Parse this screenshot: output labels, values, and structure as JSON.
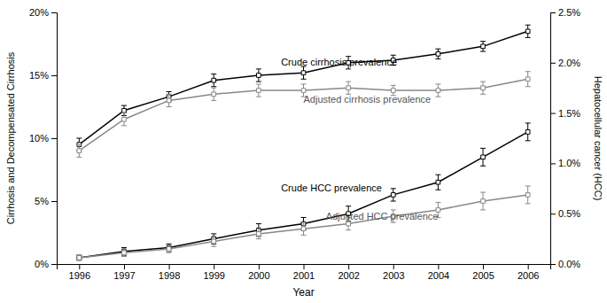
{
  "chart_data": {
    "type": "line",
    "x_label": "Year",
    "y_label": "Cirrhosis and Decompensated Cirrhosis",
    "y2_label": "Hepatocellular cancer (HCC)",
    "x": [
      1996,
      1997,
      1998,
      1999,
      2000,
      2001,
      2002,
      2003,
      2004,
      2005,
      2006
    ],
    "xlim": [
      1995.5,
      2006.5
    ],
    "xticks": [
      1996,
      1997,
      1998,
      1999,
      2000,
      2001,
      2002,
      2003,
      2004,
      2005,
      2006
    ],
    "ylim": [
      0,
      20
    ],
    "yticks": [
      {
        "value": 0,
        "label": "0%"
      },
      {
        "value": 5,
        "label": "5%"
      },
      {
        "value": 10,
        "label": "10%"
      },
      {
        "value": 15,
        "label": "15%"
      },
      {
        "value": 20,
        "label": "20%"
      }
    ],
    "y2lim": [
      0,
      2.5
    ],
    "y2ticks": [
      {
        "value": 0.0,
        "label": "0.0%"
      },
      {
        "value": 0.5,
        "label": "0.5%"
      },
      {
        "value": 1.0,
        "label": "1.0%"
      },
      {
        "value": 1.5,
        "label": "1.5%"
      },
      {
        "value": 2.0,
        "label": "2.0%"
      },
      {
        "value": 2.5,
        "label": "2.5%"
      }
    ],
    "grid": false,
    "series": [
      {
        "color": "#000000",
        "marker": "square",
        "values": [
          9.5,
          12.2,
          13.3,
          14.6,
          15.0,
          15.2,
          16.0,
          16.2,
          16.7,
          17.3,
          18.5
        ],
        "errors": [
          0.5,
          0.4,
          0.4,
          0.5,
          0.5,
          0.5,
          0.5,
          0.4,
          0.4,
          0.4,
          0.5
        ]
      },
      {
        "color": "#888888",
        "marker": "square",
        "values": [
          9.0,
          11.5,
          13.0,
          13.5,
          13.8,
          13.8,
          14.0,
          13.8,
          13.8,
          14.0,
          14.7
        ],
        "errors": [
          0.5,
          0.5,
          0.5,
          0.5,
          0.5,
          0.5,
          0.5,
          0.4,
          0.5,
          0.5,
          0.6
        ]
      },
      {
        "color": "#000000",
        "marker": "square",
        "values": [
          0.5,
          1.0,
          1.3,
          2.0,
          2.7,
          3.2,
          4.0,
          5.5,
          6.5,
          8.5,
          10.5
        ],
        "errors": [
          0.2,
          0.3,
          0.3,
          0.4,
          0.5,
          0.5,
          0.6,
          0.5,
          0.6,
          0.7,
          0.7
        ]
      },
      {
        "color": "#888888",
        "marker": "square",
        "values": [
          0.5,
          0.9,
          1.2,
          1.8,
          2.4,
          2.8,
          3.2,
          3.8,
          4.3,
          5.0,
          5.5
        ],
        "errors": [
          0.2,
          0.3,
          0.3,
          0.4,
          0.4,
          0.5,
          0.5,
          0.5,
          0.6,
          0.7,
          0.7
        ]
      }
    ],
    "annotations": [
      {
        "text": "Crude cirrhosis prevalence",
        "x": 2000.5,
        "y": 15.8,
        "color": "#000000"
      },
      {
        "text": "Adjusted cirrhosis prevalence",
        "x": 2001.0,
        "y": 12.8,
        "color": "#555555"
      },
      {
        "text": "Crude HCC prevalence",
        "x": 2000.5,
        "y": 5.8,
        "color": "#000000"
      },
      {
        "text": "Adjusted HCC prevalence",
        "x": 2001.5,
        "y": 3.5,
        "color": "#555555"
      }
    ]
  }
}
